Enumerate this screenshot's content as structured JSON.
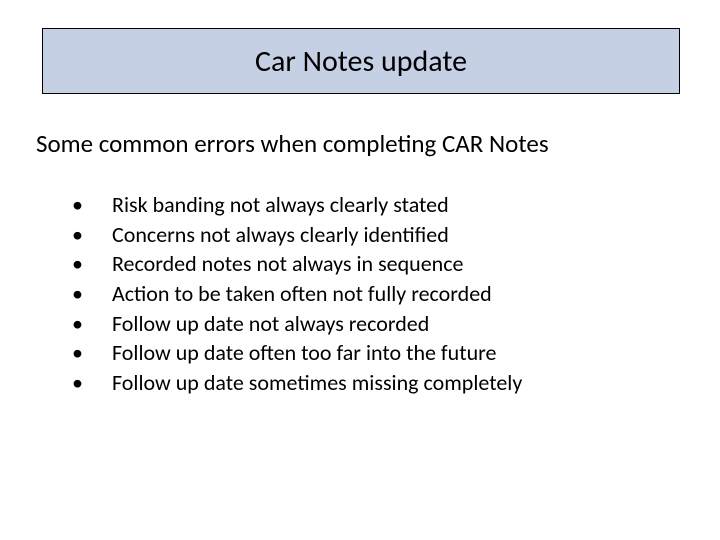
{
  "slide": {
    "title": "Car Notes update",
    "subtitle": "Some common errors when completing CAR Notes",
    "bullets": [
      "Risk banding not always clearly stated",
      "Concerns not always clearly identified",
      "Recorded notes not always in sequence",
      "Action to be taken often not fully recorded",
      "Follow up date not always recorded",
      "Follow up date often too far into the future",
      "Follow up date sometimes missing completely"
    ]
  },
  "style": {
    "title_box_bg": "#c5d0e5",
    "title_box_border": "#000000",
    "background": "#ffffff",
    "text_color": "#000000",
    "title_fontsize": 30,
    "subtitle_fontsize": 25,
    "bullet_fontsize": 22,
    "bullet_marker": "•"
  }
}
